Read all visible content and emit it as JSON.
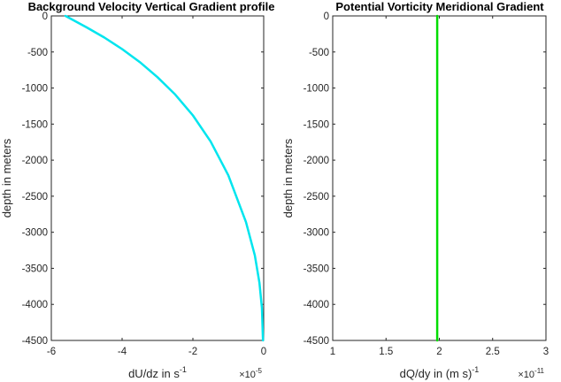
{
  "chart_data": [
    {
      "type": "line",
      "title": "Background Velocity Vertical Gradient profile",
      "xlabel": "dU/dz in s",
      "xlabel_superscript": "-1",
      "x_exponent_label": "×10",
      "x_exponent": "-5",
      "ylabel": "depth in meters",
      "xlim": [
        -6,
        0
      ],
      "ylim": [
        -4500,
        0
      ],
      "x_ticks": [
        "-6",
        "-4",
        "-2",
        "0"
      ],
      "y_ticks": [
        "0",
        "-500",
        "-1000",
        "-1500",
        "-2000",
        "-2500",
        "-3000",
        "-3500",
        "-4000",
        "-4500"
      ],
      "grid": false,
      "series": [
        {
          "color": "#00e5ee",
          "x": [
            -5.6,
            -5.0,
            -4.5,
            -4.0,
            -3.5,
            -3.0,
            -2.5,
            -2.0,
            -1.5,
            -1.0,
            -0.5,
            -0.25,
            -0.12,
            -0.05,
            -0.02
          ],
          "y": [
            0,
            -160,
            -300,
            -460,
            -640,
            -850,
            -1090,
            -1380,
            -1740,
            -2210,
            -2860,
            -3320,
            -3700,
            -4050,
            -4500
          ]
        }
      ]
    },
    {
      "type": "line",
      "title": "Potential Vorticity Meridional Gradient",
      "xlabel": "dQ/dy in (m s)",
      "xlabel_superscript": "-1",
      "x_exponent_label": "×10",
      "x_exponent": "-11",
      "ylabel": "depth in meters",
      "xlim": [
        1,
        3
      ],
      "ylim": [
        -4500,
        0
      ],
      "x_ticks": [
        "1",
        "1.5",
        "2",
        "2.5",
        "3"
      ],
      "y_ticks": [
        "0",
        "-500",
        "-1000",
        "-1500",
        "-2000",
        "-2500",
        "-3000",
        "-3500",
        "-4000",
        "-4500"
      ],
      "grid": false,
      "series": [
        {
          "color": "#00dd00",
          "x": [
            1.98,
            1.98
          ],
          "y": [
            0,
            -4500
          ]
        }
      ]
    }
  ]
}
